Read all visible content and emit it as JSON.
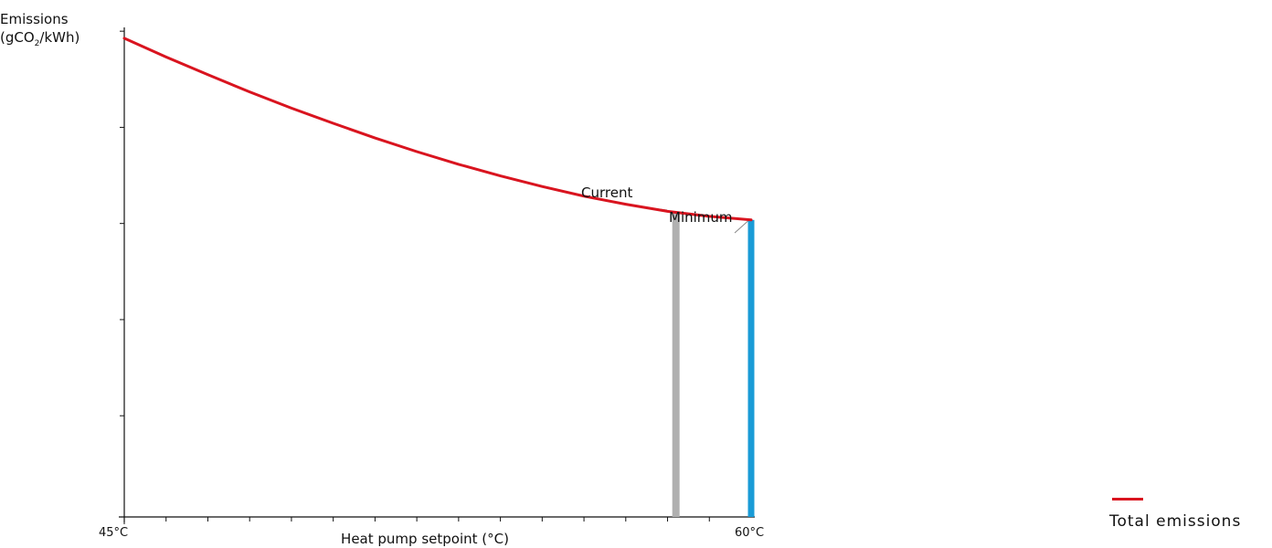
{
  "chart_data": {
    "type": "line",
    "title": "",
    "ylabel_line1": "Emissions",
    "ylabel_prefix": "(gCO",
    "ylabel_sub": "2",
    "ylabel_suffix": "/kWh)",
    "xlabel": "Heat pump setpoint (°C)",
    "x_tick_labels": [
      {
        "x": 45,
        "label": "45°C"
      },
      {
        "x": 60,
        "label": "60°C"
      }
    ],
    "xlim": [
      45,
      60
    ],
    "ylim": [
      0,
      100
    ],
    "x_minor_ticks": [
      46,
      47,
      48,
      49,
      50,
      51,
      52,
      53,
      54,
      55,
      56,
      57,
      58,
      59
    ],
    "y_ticks": [
      20,
      39,
      58,
      77,
      96
    ],
    "series": [
      {
        "name": "Total emissions",
        "color": "#d9141f",
        "x": [
          45,
          46,
          47,
          48,
          49,
          50,
          51,
          52,
          53,
          54,
          55,
          56,
          57,
          58,
          59,
          60
        ],
        "y": [
          94.6,
          90.9,
          87.4,
          84.0,
          80.8,
          77.8,
          74.9,
          72.2,
          69.7,
          67.4,
          65.3,
          63.4,
          61.8,
          60.4,
          59.4,
          58.7
        ]
      }
    ],
    "markers": [
      {
        "label": "Current",
        "x": 58.2,
        "y": 60.3,
        "color": "#b0b0b0"
      },
      {
        "label": "Minimum",
        "x": 60,
        "y": 58.7,
        "color": "#1a9bd6"
      }
    ],
    "legend_position": "bottom-right",
    "grid": false
  }
}
